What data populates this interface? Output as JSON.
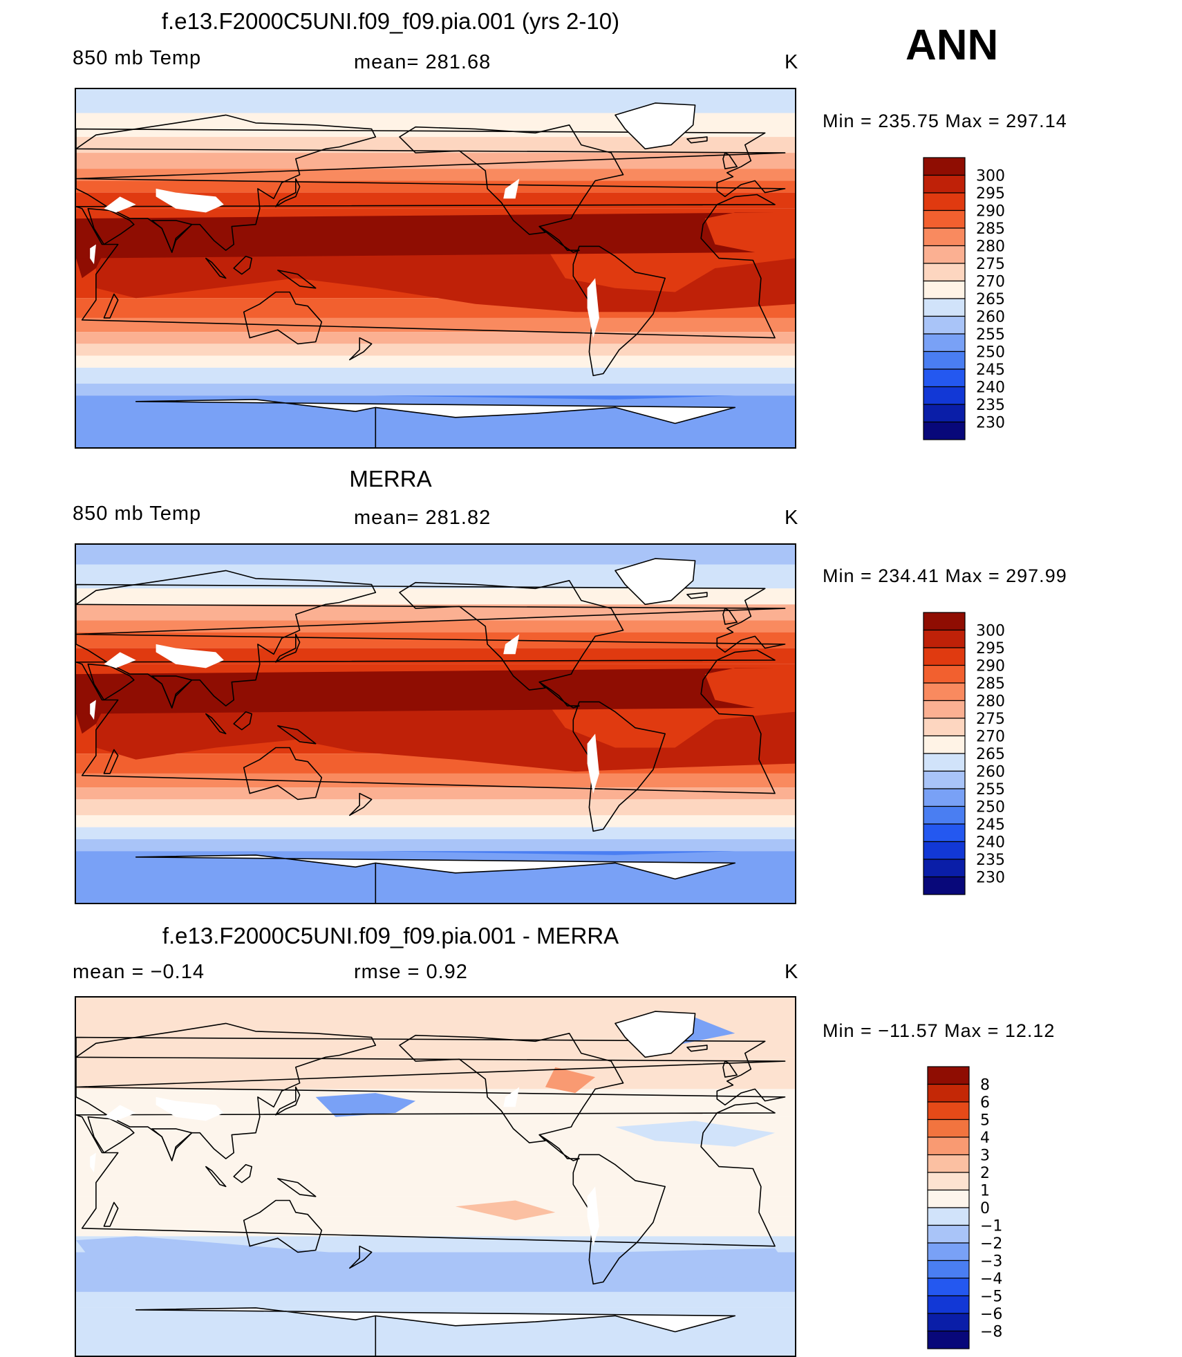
{
  "season": "ANN",
  "colors": {
    "temp_palette": [
      "#08087a",
      "#0a1ea8",
      "#1238d6",
      "#2458f0",
      "#4a7ef2",
      "#79a1f6",
      "#a9c4f8",
      "#d1e3fa",
      "#fff3e6",
      "#fdd6c0",
      "#fbb092",
      "#f98a5f",
      "#f2602f",
      "#e03a10",
      "#bf2108",
      "#8f0d02"
    ],
    "diff_palette": [
      "#08087a",
      "#0a1ea8",
      "#1238d6",
      "#2458f0",
      "#4a7ef2",
      "#79a1f6",
      "#a9c4f8",
      "#d1e3fa",
      "#fdf5ec",
      "#fde2d0",
      "#fbc0a2",
      "#f99a72",
      "#f2743f",
      "#e64a18",
      "#c42806",
      "#8f0d02"
    ],
    "land_outline": "#000000"
  },
  "chart_data": [
    {
      "type": "heatmap",
      "title": "f.e13.F2000C5UNI.f09_f09.pia.001 (yrs 2-10)",
      "left_label": "850 mb Temp",
      "center_label": "mean= 281.68",
      "right_label": "K",
      "min_max": "Min  =  235.75  Max  =  297.14",
      "min": 235.75,
      "max": 297.14,
      "mean": 281.68,
      "colorbar_labels": [
        "300",
        "295",
        "290",
        "285",
        "280",
        "275",
        "270",
        "265",
        "260",
        "255",
        "250",
        "245",
        "240",
        "235",
        "230"
      ]
    },
    {
      "type": "heatmap",
      "title": "MERRA",
      "left_label": "850 mb Temp",
      "center_label": "mean= 281.82",
      "right_label": "K",
      "min_max": "Min  =  234.41  Max  =  297.99",
      "min": 234.41,
      "max": 297.99,
      "mean": 281.82,
      "colorbar_labels": [
        "300",
        "295",
        "290",
        "285",
        "280",
        "275",
        "270",
        "265",
        "260",
        "255",
        "250",
        "245",
        "240",
        "235",
        "230"
      ]
    },
    {
      "type": "heatmap",
      "title": "f.e13.F2000C5UNI.f09_f09.pia.001 - MERRA",
      "left_label": "mean =     −0.14",
      "center_label": "rmse =      0.92",
      "right_label": "K",
      "min_max": "Min  =  −11.57  Max  =     12.12",
      "min": -11.57,
      "max": 12.12,
      "mean": -0.14,
      "rmse": 0.92,
      "colorbar_labels": [
        "8",
        "6",
        "5",
        "4",
        "3",
        "2",
        "1",
        "0",
        "−1",
        "−2",
        "−3",
        "−4",
        "−5",
        "−6",
        "−8"
      ]
    }
  ]
}
